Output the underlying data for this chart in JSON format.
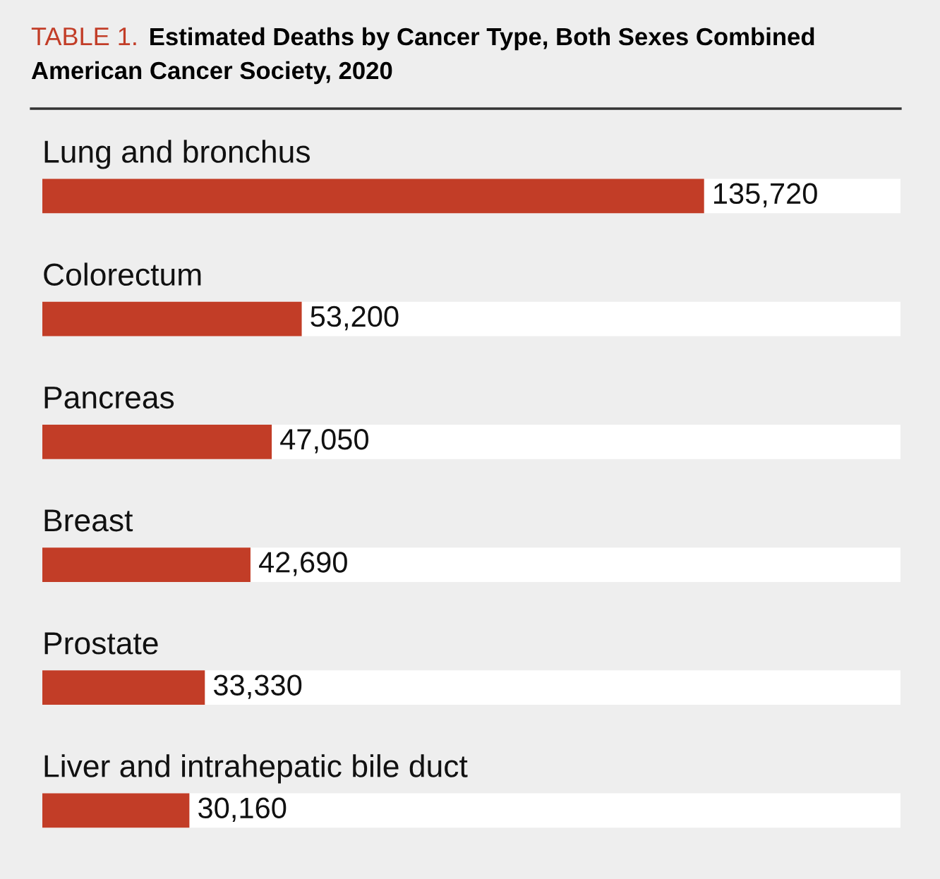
{
  "chart_data": {
    "type": "bar",
    "orientation": "horizontal",
    "title": "TABLE 1.",
    "subtitle": "Estimated Deaths by Cancer Type, Both Sexes Combined\nAmerican Cancer Society, 2020",
    "categories": [
      "Lung and bronchus",
      "Colorectum",
      "Pancreas",
      "Breast",
      "Prostate",
      "Liver and intrahepatic bile duct"
    ],
    "values": [
      135720,
      53200,
      47050,
      42690,
      33330,
      30160
    ],
    "value_labels": [
      "135,720",
      "53,200",
      "47,050",
      "42,690",
      "33,330",
      "30,160"
    ],
    "color": "#c23d27",
    "xlim": [
      0,
      176000
    ]
  }
}
